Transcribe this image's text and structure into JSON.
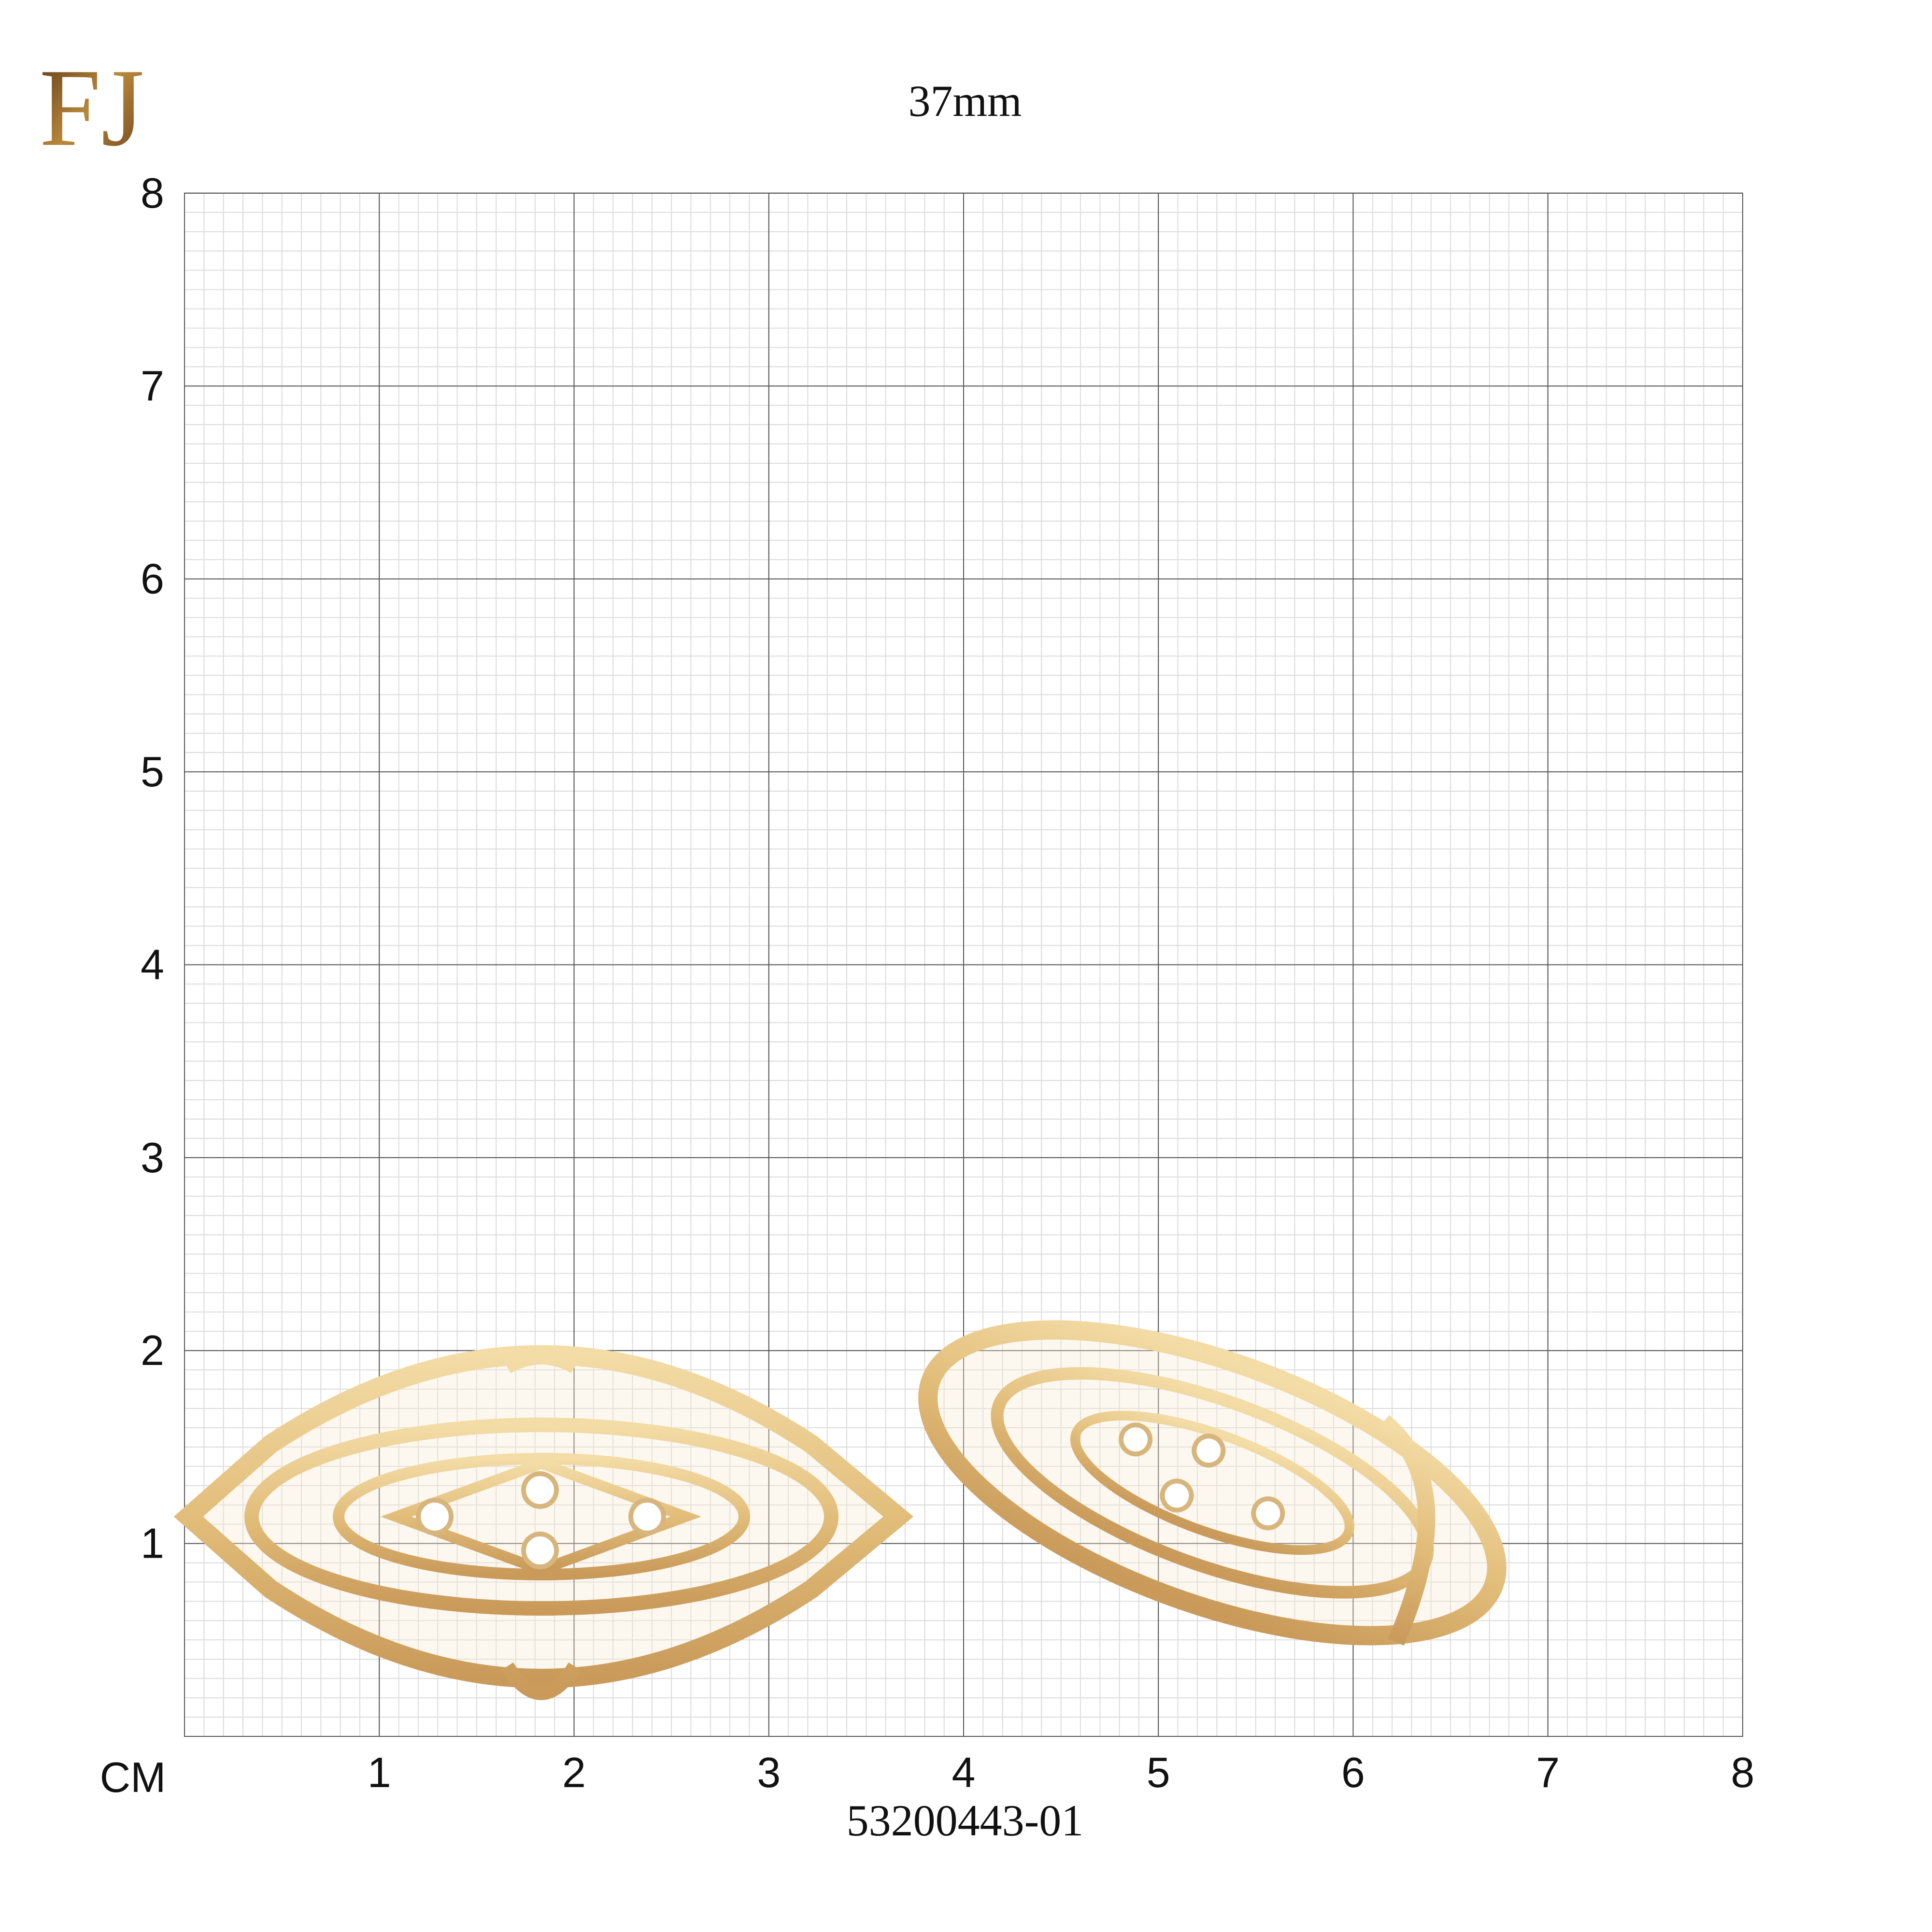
{
  "logo": "FJ",
  "size_label": "37mm",
  "grid": {
    "unit": "CM",
    "x_ticks": [
      1,
      2,
      3,
      4,
      5,
      6,
      7,
      8
    ],
    "y_ticks": [
      1,
      2,
      3,
      4,
      5,
      6,
      7,
      8
    ]
  },
  "product_code": "53200443-01"
}
